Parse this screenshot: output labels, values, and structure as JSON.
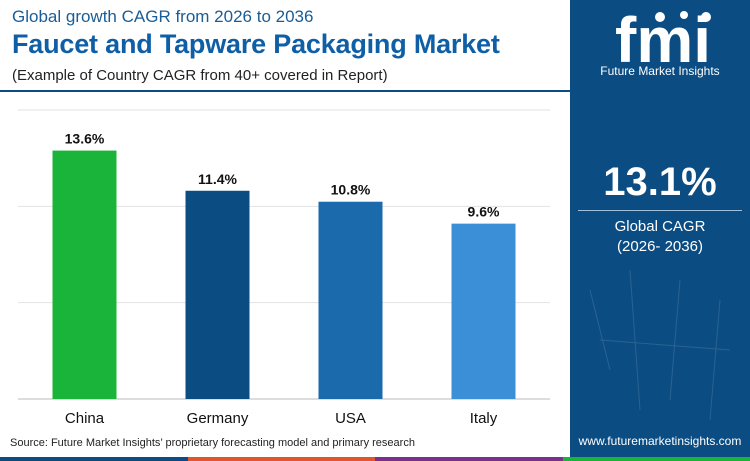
{
  "header": {
    "supertitle": "Global growth CAGR from 2026 to 2036",
    "title": "Faucet and Tapware Packaging Market",
    "subtitle": "(Example of Country CAGR from 40+ covered in Report)"
  },
  "chart_data": {
    "type": "bar",
    "categories": [
      "China",
      "Germany",
      "USA",
      "Italy"
    ],
    "values": [
      13.6,
      11.4,
      10.8,
      9.6
    ],
    "value_labels": [
      "13.6%",
      "11.4%",
      "10.8%",
      "9.6%"
    ],
    "bar_colors": [
      "#1bb43a",
      "#0b4c82",
      "#1a6aac",
      "#3b8fd6"
    ],
    "title": "",
    "xlabel": "",
    "ylabel": "",
    "ylim": [
      0,
      15
    ],
    "grid": true
  },
  "sidebar": {
    "logo_letters": "fmi",
    "logo_caption": "Future Market Insights",
    "headline_value": "13.1%",
    "headline_label": "Global CAGR",
    "headline_period": "(2026- 2036)",
    "website": "www.futuremarketinsights.com"
  },
  "footer": {
    "source": "Source: Future Market Insights’ proprietary forecasting model and primary research"
  },
  "colors": {
    "panel": "#0b4c82",
    "accent": "#0f5fa6",
    "bottom_stripe": [
      "#0b4c82",
      "#e2542b",
      "#7a2f8f",
      "#1bb43a"
    ]
  }
}
